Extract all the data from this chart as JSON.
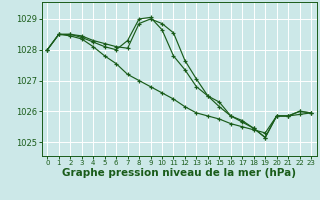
{
  "bg_color": "#cce8e8",
  "grid_color": "#ffffff",
  "line_color": "#1a5c1a",
  "xlabel": "Graphe pression niveau de la mer (hPa)",
  "xlabel_fontsize": 7.5,
  "ylabel_ticks": [
    1025,
    1026,
    1027,
    1028,
    1029
  ],
  "xlim": [
    -0.5,
    23.5
  ],
  "ylim": [
    1024.55,
    1029.55
  ],
  "xticks": [
    0,
    1,
    2,
    3,
    4,
    5,
    6,
    7,
    8,
    9,
    10,
    11,
    12,
    13,
    14,
    15,
    16,
    17,
    18,
    19,
    20,
    21,
    22,
    23
  ],
  "series": [
    [
      1028.0,
      1028.5,
      1028.5,
      1028.45,
      1028.3,
      1028.2,
      1028.1,
      1028.05,
      1028.85,
      1029.0,
      1028.85,
      1028.55,
      1027.65,
      1027.05,
      1026.5,
      1026.15,
      1025.85,
      1025.7,
      1025.45,
      1025.15,
      1025.85,
      1025.85,
      1025.9,
      1025.95
    ],
    [
      1028.0,
      1028.5,
      1028.5,
      1028.4,
      1028.25,
      1028.1,
      1028.0,
      1028.3,
      1029.0,
      1029.05,
      1028.65,
      1027.8,
      1027.35,
      1026.8,
      1026.5,
      1026.3,
      1025.85,
      1025.65,
      1025.45,
      1025.15,
      1025.85,
      1025.85,
      1026.0,
      1025.95
    ],
    [
      1028.0,
      1028.5,
      1028.45,
      1028.35,
      1028.1,
      1027.8,
      1027.55,
      1027.2,
      1027.0,
      1026.8,
      1026.6,
      1026.4,
      1026.15,
      1025.95,
      1025.85,
      1025.75,
      1025.6,
      1025.5,
      1025.4,
      1025.3,
      1025.85,
      1025.85,
      1026.0,
      1025.95
    ]
  ]
}
